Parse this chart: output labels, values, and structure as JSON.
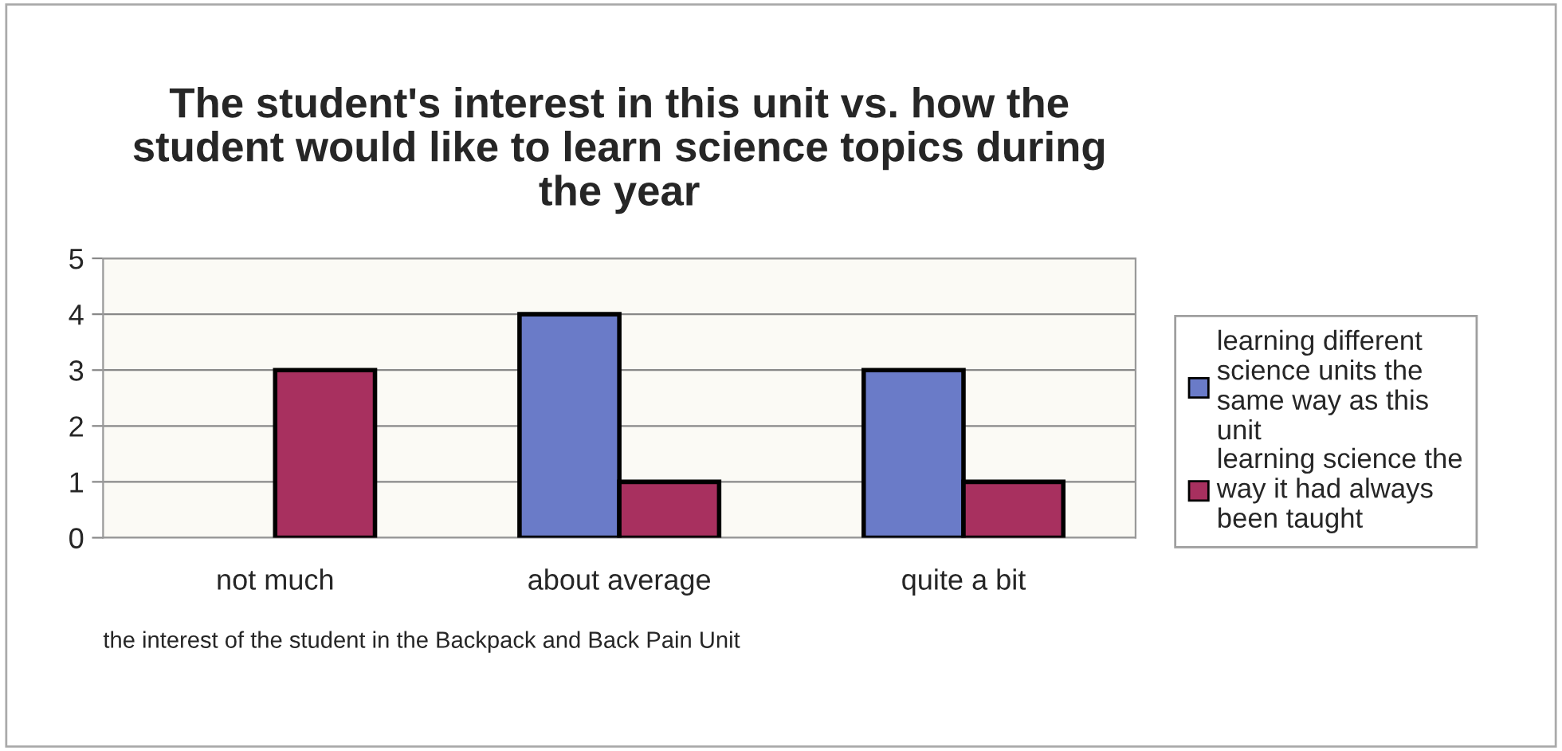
{
  "chart_data": {
    "type": "bar",
    "title": "The student's interest in this unit vs. how the\nstudent would like to learn science topics during\nthe year",
    "xlabel": "the interest of the student in the Backpack and Back Pain Unit",
    "categories": [
      "not much",
      "about average",
      "quite a bit"
    ],
    "series": [
      {
        "name": "learning different\nscience units the\nsame way as this\nunit",
        "color": "#6a7bc8",
        "values": [
          null,
          4,
          3
        ]
      },
      {
        "name": "learning science the\nway it had always\nbeen taught",
        "color": "#a8305f",
        "values": [
          3,
          1,
          1
        ]
      }
    ],
    "ylim": [
      0,
      5
    ],
    "yticks": [
      0,
      1,
      2,
      3,
      4,
      5
    ],
    "grid": "y",
    "legend": "right"
  }
}
